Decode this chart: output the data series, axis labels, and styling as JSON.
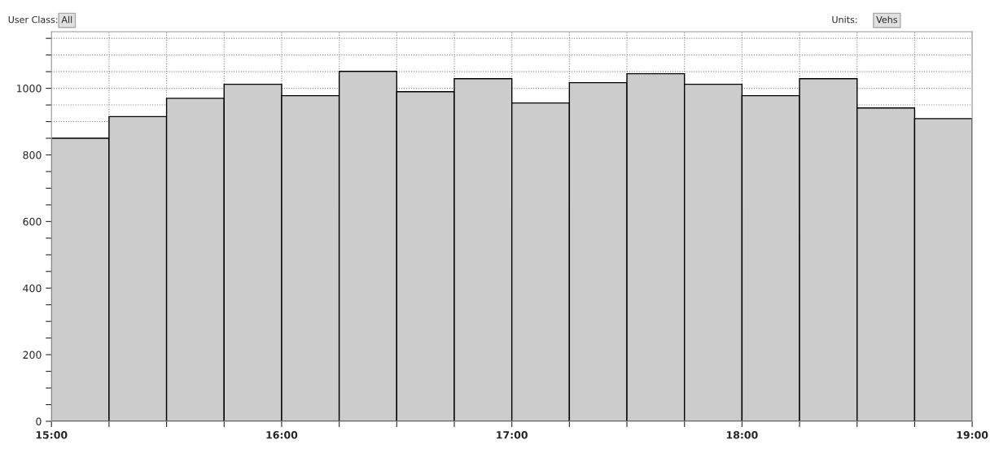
{
  "chart_data": {
    "type": "histogram",
    "bins": [
      15,
      15.25,
      15.5,
      15.75,
      16,
      16.25,
      16.5,
      16.75,
      17,
      17.25,
      17.5,
      17.75,
      18,
      18.25,
      18.5,
      18.75,
      19
    ],
    "values": [
      850,
      915,
      970,
      1012,
      978,
      1051,
      990,
      1029,
      956,
      1017,
      1044,
      1012,
      978,
      1029,
      941,
      909
    ],
    "color": "#cccccc",
    "xlim": [
      15,
      19
    ],
    "xticks": [
      {
        "value": 15,
        "label": "15:00"
      },
      {
        "value": 15.25,
        "label": null
      },
      {
        "value": 15.5,
        "label": null
      },
      {
        "value": 15.75,
        "label": null
      },
      {
        "value": 16,
        "label": "16:00"
      },
      {
        "value": 16.25,
        "label": null
      },
      {
        "value": 16.5,
        "label": null
      },
      {
        "value": 16.75,
        "label": null
      },
      {
        "value": 17,
        "label": "17:00"
      },
      {
        "value": 17.25,
        "label": null
      },
      {
        "value": 17.5,
        "label": null
      },
      {
        "value": 17.75,
        "label": null
      },
      {
        "value": 18,
        "label": "18:00"
      },
      {
        "value": 18.25,
        "label": null
      },
      {
        "value": 18.5,
        "label": null
      },
      {
        "value": 18.75,
        "label": null
      },
      {
        "value": 19,
        "label": "19:00"
      }
    ],
    "ylim": [
      0,
      1170
    ],
    "yticks": [
      0,
      {
        "value": 50,
        "label": null
      },
      {
        "value": 100,
        "label": null
      },
      {
        "value": 150,
        "label": null
      },
      200,
      {
        "value": 250,
        "label": null
      },
      {
        "value": 300,
        "label": null
      },
      {
        "value": 350,
        "label": null
      },
      400,
      {
        "value": 450,
        "label": null
      },
      {
        "value": 500,
        "label": null
      },
      {
        "value": 550,
        "label": null
      },
      600,
      {
        "value": 650,
        "label": null
      },
      {
        "value": 700,
        "label": null
      },
      {
        "value": 750,
        "label": null
      },
      800,
      {
        "value": 850,
        "label": null
      },
      {
        "value": 900,
        "label": null
      },
      {
        "value": 950,
        "label": null
      },
      1000,
      {
        "value": 1050,
        "label": null
      },
      {
        "value": 1100,
        "label": null
      },
      {
        "value": 1150,
        "label": null
      }
    ],
    "grid": true,
    "annotations": [
      "User Class:",
      "All",
      "Units:",
      "Vehs"
    ]
  }
}
